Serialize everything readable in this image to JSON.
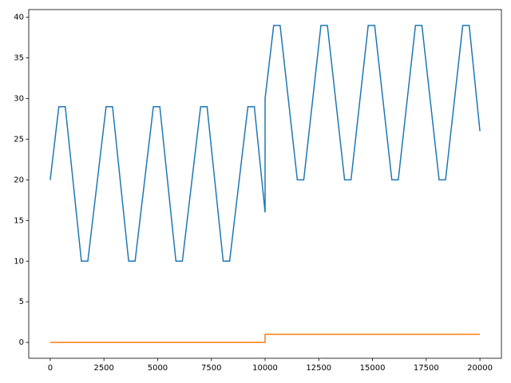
{
  "chart_data": {
    "type": "line",
    "xlim": [
      -1000,
      21000
    ],
    "xticks": [
      0,
      2500,
      5000,
      7500,
      10000,
      12500,
      15000,
      17500,
      20000
    ],
    "ylim": [
      -1.95,
      40.95
    ],
    "yticks": [
      0,
      5,
      10,
      15,
      20,
      25,
      30,
      35,
      40
    ],
    "series": [
      {
        "color": "#1f77b4",
        "x": [
          0,
          400,
          700,
          1450,
          1750,
          2600,
          2900,
          3650,
          3950,
          4800,
          5100,
          5850,
          6150,
          7000,
          7300,
          8050,
          8350,
          9200,
          9500,
          10000,
          10000,
          10400,
          10700,
          11500,
          11800,
          12600,
          12900,
          13700,
          14000,
          14800,
          15100,
          15900,
          16200,
          17000,
          17300,
          18100,
          18400,
          19200,
          19500,
          20000
        ],
        "values": [
          20,
          29,
          29,
          10,
          10,
          29,
          29,
          10,
          10,
          29,
          29,
          10,
          10,
          29,
          29,
          10,
          10,
          29,
          29,
          16,
          30,
          39,
          39,
          20,
          20,
          39,
          39,
          20,
          20,
          39,
          39,
          20,
          20,
          39,
          39,
          20,
          20,
          39,
          39,
          26
        ]
      },
      {
        "color": "#ff7f0e",
        "x": [
          0,
          10000,
          10000,
          20000
        ],
        "values": [
          0,
          0,
          1,
          1
        ]
      }
    ]
  }
}
